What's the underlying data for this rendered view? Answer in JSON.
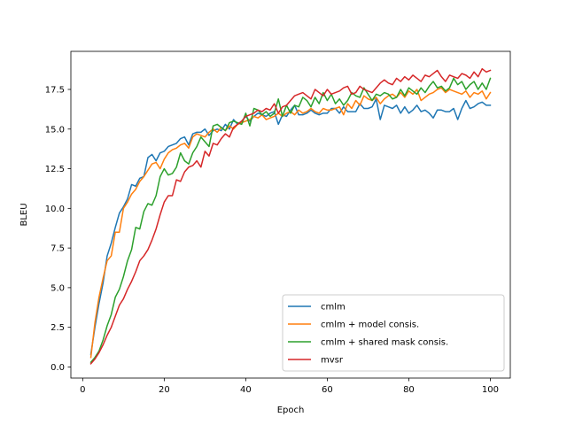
{
  "chart_data": {
    "type": "line",
    "title": "",
    "xlabel": "Epoch",
    "ylabel": "BLEU",
    "xlim": [
      -2.9,
      104.9
    ],
    "ylim": [
      -0.7,
      19.9
    ],
    "xticks": [
      0,
      20,
      40,
      60,
      80,
      100
    ],
    "xtick_labels": [
      "0",
      "20",
      "40",
      "60",
      "80",
      "100"
    ],
    "yticks": [
      0.0,
      2.5,
      5.0,
      7.5,
      10.0,
      12.5,
      15.0,
      17.5
    ],
    "ytick_labels": [
      "0.0",
      "2.5",
      "5.0",
      "7.5",
      "10.0",
      "12.5",
      "15.0",
      "17.5"
    ],
    "grid": false,
    "legend_position": "lower right",
    "x": [
      2,
      3,
      4,
      5,
      6,
      7,
      8,
      9,
      10,
      11,
      12,
      13,
      14,
      15,
      16,
      17,
      18,
      19,
      20,
      21,
      22,
      23,
      24,
      25,
      26,
      27,
      28,
      29,
      30,
      31,
      32,
      33,
      34,
      35,
      36,
      37,
      38,
      39,
      40,
      41,
      42,
      43,
      44,
      45,
      46,
      47,
      48,
      49,
      50,
      51,
      52,
      53,
      54,
      55,
      56,
      57,
      58,
      59,
      60,
      61,
      62,
      63,
      64,
      65,
      66,
      67,
      68,
      69,
      70,
      71,
      72,
      73,
      74,
      75,
      76,
      77,
      78,
      79,
      80,
      81,
      82,
      83,
      84,
      85,
      86,
      87,
      88,
      89,
      90,
      91,
      92,
      93,
      94,
      95,
      96,
      97,
      98,
      99,
      100
    ],
    "series": [
      {
        "name": "cmlm",
        "color": "#1f77b4",
        "values": [
          0.8,
          2.5,
          4.0,
          5.3,
          7.0,
          7.8,
          8.8,
          9.7,
          10.1,
          10.6,
          11.5,
          11.4,
          11.9,
          12.0,
          13.2,
          13.4,
          13.0,
          13.5,
          13.6,
          13.9,
          14.0,
          14.1,
          14.4,
          14.5,
          14.0,
          14.7,
          14.8,
          14.8,
          15.0,
          14.6,
          14.9,
          15.0,
          14.9,
          15.3,
          15.0,
          15.6,
          15.3,
          15.5,
          15.8,
          15.5,
          15.8,
          16.0,
          15.9,
          15.8,
          16.0,
          16.1,
          15.3,
          15.9,
          15.8,
          16.2,
          16.5,
          15.9,
          15.9,
          16.0,
          16.2,
          16.0,
          15.9,
          16.0,
          16.0,
          16.3,
          16.3,
          16.0,
          16.4,
          16.1,
          16.1,
          16.1,
          16.6,
          16.3,
          16.3,
          16.4,
          16.9,
          15.6,
          16.5,
          16.4,
          16.3,
          16.5,
          16.0,
          16.4,
          16.0,
          16.2,
          16.5,
          16.1,
          16.2,
          16.0,
          15.7,
          16.2,
          16.2,
          16.1,
          16.1,
          16.3,
          15.6,
          16.3,
          16.8,
          16.3,
          16.4,
          16.6,
          16.7,
          16.5,
          16.5
        ]
      },
      {
        "name": "cmlm + model consis.",
        "color": "#ff7f0e",
        "values": [
          0.6,
          2.8,
          4.4,
          5.6,
          6.7,
          7.0,
          8.5,
          8.5,
          10.0,
          10.4,
          10.9,
          11.2,
          11.7,
          12.0,
          12.4,
          12.8,
          12.9,
          12.5,
          13.1,
          13.5,
          13.7,
          13.8,
          14.0,
          14.1,
          13.8,
          14.5,
          14.7,
          14.6,
          14.5,
          14.8,
          15.0,
          14.8,
          15.1,
          14.9,
          15.2,
          15.0,
          15.3,
          15.4,
          15.5,
          15.6,
          15.8,
          15.7,
          15.9,
          15.6,
          15.7,
          15.8,
          16.0,
          15.8,
          16.0,
          16.1,
          15.9,
          16.2,
          16.0,
          16.1,
          16.3,
          16.1,
          16.0,
          16.3,
          16.2,
          16.2,
          16.3,
          16.4,
          15.9,
          16.6,
          16.3,
          16.8,
          16.5,
          17.1,
          16.9,
          16.8,
          17.0,
          16.6,
          16.9,
          17.1,
          17.2,
          17.0,
          17.3,
          17.0,
          17.4,
          17.2,
          17.5,
          16.8,
          17.0,
          17.2,
          17.3,
          17.5,
          17.6,
          17.3,
          17.5,
          17.4,
          17.3,
          17.2,
          17.4,
          17.0,
          17.3,
          17.2,
          17.4,
          16.9,
          17.3
        ]
      },
      {
        "name": "cmlm + shared mask consis.",
        "color": "#2ca02c",
        "values": [
          0.3,
          0.6,
          1.0,
          1.7,
          2.6,
          3.3,
          4.4,
          4.9,
          5.7,
          6.7,
          7.4,
          8.8,
          8.7,
          9.8,
          10.3,
          10.2,
          10.8,
          12.0,
          12.5,
          12.1,
          12.2,
          12.6,
          13.5,
          13.0,
          12.8,
          13.5,
          13.9,
          14.5,
          14.2,
          13.9,
          15.2,
          15.3,
          15.1,
          14.9,
          15.4,
          15.5,
          15.4,
          15.3,
          16.0,
          15.2,
          16.3,
          16.2,
          15.9,
          16.1,
          15.8,
          16.0,
          16.9,
          15.8,
          16.5,
          16.0,
          16.5,
          16.4,
          17.0,
          16.8,
          16.4,
          17.0,
          16.6,
          17.3,
          16.8,
          17.2,
          16.6,
          16.9,
          16.5,
          16.8,
          17.3,
          17.1,
          17.0,
          17.6,
          17.2,
          16.8,
          17.2,
          17.1,
          17.3,
          17.2,
          16.9,
          17.0,
          17.5,
          17.1,
          17.6,
          17.4,
          17.2,
          17.6,
          17.3,
          17.7,
          18.0,
          17.6,
          17.7,
          17.4,
          17.6,
          18.2,
          17.8,
          18.0,
          17.5,
          17.8,
          18.0,
          17.5,
          17.9,
          17.5,
          18.2
        ]
      },
      {
        "name": "mvsr",
        "color": "#d62728",
        "values": [
          0.2,
          0.5,
          0.9,
          1.4,
          2.0,
          2.5,
          3.2,
          3.9,
          4.3,
          4.9,
          5.4,
          6.0,
          6.7,
          7.0,
          7.4,
          8.0,
          8.7,
          9.6,
          10.4,
          10.8,
          10.8,
          11.8,
          11.7,
          12.3,
          12.6,
          12.7,
          13.0,
          12.6,
          13.6,
          13.3,
          14.1,
          14.0,
          14.4,
          14.7,
          14.5,
          15.1,
          15.3,
          15.5,
          15.8,
          15.9,
          16.0,
          16.2,
          16.1,
          16.3,
          16.2,
          16.6,
          16.0,
          16.4,
          16.5,
          16.8,
          17.1,
          17.2,
          17.3,
          17.1,
          16.9,
          17.5,
          17.3,
          17.1,
          17.5,
          17.2,
          17.3,
          17.4,
          17.6,
          17.7,
          17.2,
          17.3,
          17.7,
          17.5,
          17.4,
          17.3,
          17.6,
          17.9,
          18.1,
          17.9,
          17.8,
          18.2,
          18.0,
          18.3,
          18.1,
          18.4,
          18.2,
          18.0,
          18.4,
          18.3,
          18.5,
          18.7,
          18.3,
          18.0,
          18.4,
          18.3,
          18.2,
          18.5,
          18.4,
          18.2,
          18.6,
          18.3,
          18.8,
          18.6,
          18.7
        ]
      }
    ]
  }
}
